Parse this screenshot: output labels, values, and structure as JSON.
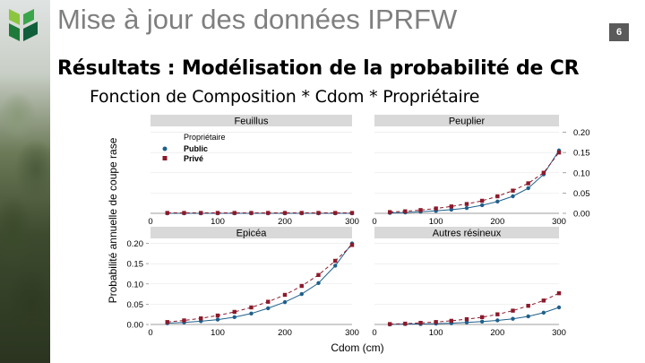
{
  "slide": {
    "title": "Mise à jour des données IPRFW",
    "page_number": "6",
    "heading": "Résultats : Modélisation de la probabilité de CR",
    "subheading": "Fonction de Composition * Cdom * Propriétaire"
  },
  "colors": {
    "public": "#1f5f8b",
    "prive": "#8b1a2b",
    "strip": "#d9d9d9",
    "grid": "#e6e6e6"
  },
  "chart_data": {
    "type": "line",
    "ylabel": "Probabilité annuelle de coupe rase",
    "xlabel": "Cdom (cm)",
    "legend": {
      "title": "Propriétaire",
      "entries": [
        "Public",
        "Privé"
      ],
      "position": "top-left"
    },
    "x_ticks": [
      "0",
      "100",
      "200",
      "300"
    ],
    "y_ticks": [
      "0.00",
      "0.05",
      "0.10",
      "0.15",
      "0.20"
    ],
    "xlim": [
      0,
      300
    ],
    "ylim": [
      0,
      0.21
    ],
    "panels": [
      {
        "name": "Feuillus",
        "strip": "top",
        "series": [
          {
            "name": "Public",
            "x": [
              25,
              50,
              75,
              100,
              125,
              150,
              175,
              200,
              225,
              250,
              275,
              300
            ],
            "y": [
              0,
              0,
              0,
              0,
              0,
              0,
              0,
              0,
              0,
              0,
              0,
              0
            ]
          },
          {
            "name": "Privé",
            "x": [
              25,
              50,
              75,
              100,
              125,
              150,
              175,
              200,
              225,
              250,
              275,
              300
            ],
            "y": [
              0.001,
              0.001,
              0.001,
              0.001,
              0.001,
              0.001,
              0.001,
              0.001,
              0.001,
              0.001,
              0.001,
              0.001
            ]
          }
        ]
      },
      {
        "name": "Peuplier",
        "strip": "top",
        "series": [
          {
            "name": "Public",
            "x": [
              25,
              50,
              75,
              100,
              125,
              150,
              175,
              200,
              225,
              250,
              275,
              300
            ],
            "y": [
              0.001,
              0.002,
              0.004,
              0.006,
              0.009,
              0.013,
              0.02,
              0.029,
              0.042,
              0.062,
              0.096,
              0.155
            ]
          },
          {
            "name": "Privé",
            "x": [
              25,
              50,
              75,
              100,
              125,
              150,
              175,
              200,
              225,
              250,
              275,
              300
            ],
            "y": [
              0.003,
              0.005,
              0.008,
              0.012,
              0.017,
              0.023,
              0.031,
              0.042,
              0.056,
              0.074,
              0.1,
              0.15
            ]
          }
        ]
      },
      {
        "name": "Epicéa",
        "strip": "bottom",
        "series": [
          {
            "name": "Public",
            "x": [
              25,
              50,
              75,
              100,
              125,
              150,
              175,
              200,
              225,
              250,
              275,
              300
            ],
            "y": [
              0.003,
              0.005,
              0.008,
              0.012,
              0.018,
              0.027,
              0.04,
              0.055,
              0.075,
              0.102,
              0.145,
              0.2
            ]
          },
          {
            "name": "Privé",
            "x": [
              25,
              50,
              75,
              100,
              125,
              150,
              175,
              200,
              225,
              250,
              275,
              300
            ],
            "y": [
              0.006,
              0.01,
              0.015,
              0.022,
              0.031,
              0.042,
              0.056,
              0.073,
              0.095,
              0.122,
              0.157,
              0.196
            ]
          }
        ]
      },
      {
        "name": "Autres résineux",
        "strip": "top",
        "series": [
          {
            "name": "Public",
            "x": [
              25,
              50,
              75,
              100,
              125,
              150,
              175,
              200,
              225,
              250,
              275,
              300
            ],
            "y": [
              0,
              0.001,
              0.001,
              0.002,
              0.003,
              0.005,
              0.007,
              0.01,
              0.014,
              0.02,
              0.029,
              0.042
            ]
          },
          {
            "name": "Privé",
            "x": [
              25,
              50,
              75,
              100,
              125,
              150,
              175,
              200,
              225,
              250,
              275,
              300
            ],
            "y": [
              0.001,
              0.002,
              0.004,
              0.006,
              0.009,
              0.013,
              0.018,
              0.025,
              0.034,
              0.046,
              0.059,
              0.077
            ]
          }
        ]
      }
    ]
  }
}
